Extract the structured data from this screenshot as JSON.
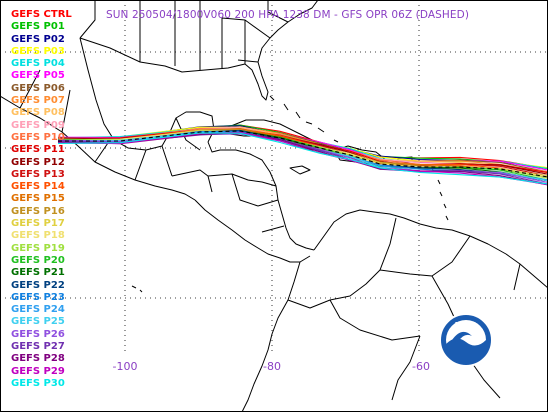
{
  "title": "SUN 250504/1800V060  200 HPA 1238 DM - GFS OPR 06Z (DASHED)",
  "legend": [
    {
      "label": "GEFS CTRL",
      "color": "#ff0000"
    },
    {
      "label": "GEFS P01",
      "color": "#00c000"
    },
    {
      "label": "GEFS P02",
      "color": "#000090"
    },
    {
      "label": "GEFS P03",
      "color": "#ffff00"
    },
    {
      "label": "GEFS P04",
      "color": "#00e0e0"
    },
    {
      "label": "GEFS P05",
      "color": "#ff00ff"
    },
    {
      "label": "GEFS P06",
      "color": "#8b5a2b"
    },
    {
      "label": "GEFS P07",
      "color": "#ff8c30"
    },
    {
      "label": "GEFS P08",
      "color": "#ffc060"
    },
    {
      "label": "GEFS P09",
      "color": "#ffa0b8"
    },
    {
      "label": "GEFS P10",
      "color": "#ff7040"
    },
    {
      "label": "GEFS P11",
      "color": "#e00000"
    },
    {
      "label": "GEFS P12",
      "color": "#900000"
    },
    {
      "label": "GEFS P13",
      "color": "#d01010"
    },
    {
      "label": "GEFS P14",
      "color": "#ff5000"
    },
    {
      "label": "GEFS P15",
      "color": "#e07000"
    },
    {
      "label": "GEFS P16",
      "color": "#c09020"
    },
    {
      "label": "GEFS P17",
      "color": "#e0d040"
    },
    {
      "label": "GEFS P18",
      "color": "#f0e070"
    },
    {
      "label": "GEFS P19",
      "color": "#a0e040"
    },
    {
      "label": "GEFS P20",
      "color": "#20c020"
    },
    {
      "label": "GEFS P21",
      "color": "#007000"
    },
    {
      "label": "GEFS P22",
      "color": "#004080"
    },
    {
      "label": "GEFS P23",
      "color": "#1080e0"
    },
    {
      "label": "GEFS P24",
      "color": "#30a0f0"
    },
    {
      "label": "GEFS P25",
      "color": "#40d0f0"
    },
    {
      "label": "GEFS P26",
      "color": "#9050e0"
    },
    {
      "label": "GEFS P27",
      "color": "#7030b0"
    },
    {
      "label": "GEFS P28",
      "color": "#800080"
    },
    {
      "label": "GEFS P29",
      "color": "#c000c0"
    },
    {
      "label": "GEFS P30",
      "color": "#00e8e8"
    }
  ],
  "longitude_labels": [
    "-100",
    "-80",
    "-60"
  ],
  "logo": {
    "text": "NOAA",
    "icon": "noaa-logo-icon"
  },
  "colors": {
    "title": "#8a3fc4",
    "axis_labels": "#8a3fc4",
    "coastline": "#000000",
    "background": "#ffffff"
  }
}
